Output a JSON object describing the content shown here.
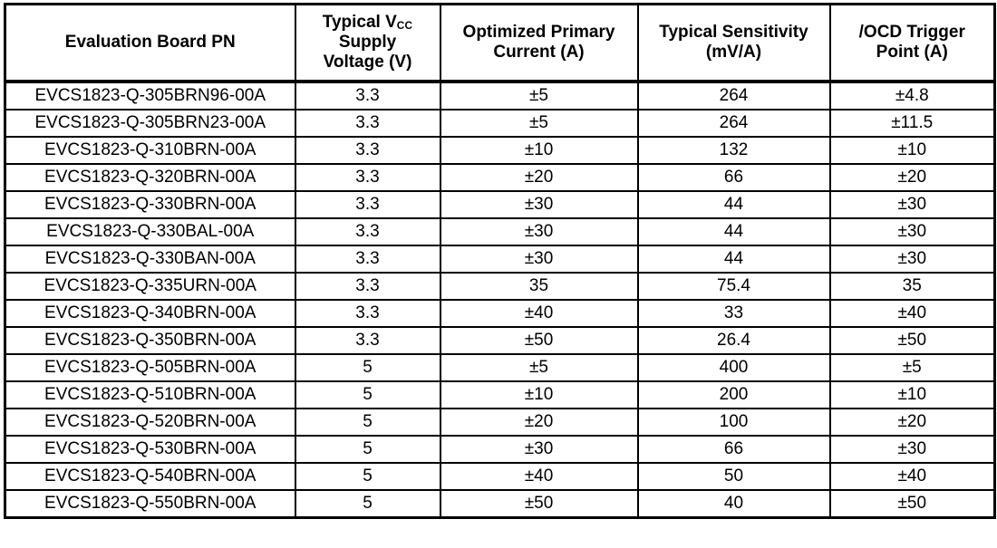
{
  "page": {
    "background_color": "#ffffff",
    "text_color": "#000000",
    "border_color": "#000000"
  },
  "table": {
    "column_ids": [
      "pn",
      "vcc",
      "current",
      "sensitivity",
      "ocd"
    ],
    "headers": {
      "pn": {
        "lines": [
          "Evaluation Board PN"
        ]
      },
      "vcc": {
        "line1_pre": "Typical V",
        "line1_sub": "CC",
        "line2": "Supply",
        "line3": "Voltage (V)"
      },
      "current": {
        "lines": [
          "Optimized Primary",
          "Current (A)"
        ]
      },
      "sensitivity": {
        "lines": [
          "Typical Sensitivity",
          "(mV/A)"
        ]
      },
      "ocd": {
        "lines": [
          "/OCD Trigger",
          "Point (A)"
        ]
      }
    },
    "rows": [
      [
        "EVCS1823-Q-305BRN96-00A",
        "3.3",
        "±5",
        "264",
        "±4.8"
      ],
      [
        "EVCS1823-Q-305BRN23-00A",
        "3.3",
        "±5",
        "264",
        "±11.5"
      ],
      [
        "EVCS1823-Q-310BRN-00A",
        "3.3",
        "±10",
        "132",
        "±10"
      ],
      [
        "EVCS1823-Q-320BRN-00A",
        "3.3",
        "±20",
        "66",
        "±20"
      ],
      [
        "EVCS1823-Q-330BRN-00A",
        "3.3",
        "±30",
        "44",
        "±30"
      ],
      [
        "EVCS1823-Q-330BAL-00A",
        "3.3",
        "±30",
        "44",
        "±30"
      ],
      [
        "EVCS1823-Q-330BAN-00A",
        "3.3",
        "±30",
        "44",
        "±30"
      ],
      [
        "EVCS1823-Q-335URN-00A",
        "3.3",
        "35",
        "75.4",
        "35"
      ],
      [
        "EVCS1823-Q-340BRN-00A",
        "3.3",
        "±40",
        "33",
        "±40"
      ],
      [
        "EVCS1823-Q-350BRN-00A",
        "3.3",
        "±50",
        "26.4",
        "±50"
      ],
      [
        "EVCS1823-Q-505BRN-00A",
        "5",
        "±5",
        "400",
        "±5"
      ],
      [
        "EVCS1823-Q-510BRN-00A",
        "5",
        "±10",
        "200",
        "±10"
      ],
      [
        "EVCS1823-Q-520BRN-00A",
        "5",
        "±20",
        "100",
        "±20"
      ],
      [
        "EVCS1823-Q-530BRN-00A",
        "5",
        "±30",
        "66",
        "±30"
      ],
      [
        "EVCS1823-Q-540BRN-00A",
        "5",
        "±40",
        "50",
        "±40"
      ],
      [
        "EVCS1823-Q-550BRN-00A",
        "5",
        "±50",
        "40",
        "±50"
      ]
    ]
  }
}
